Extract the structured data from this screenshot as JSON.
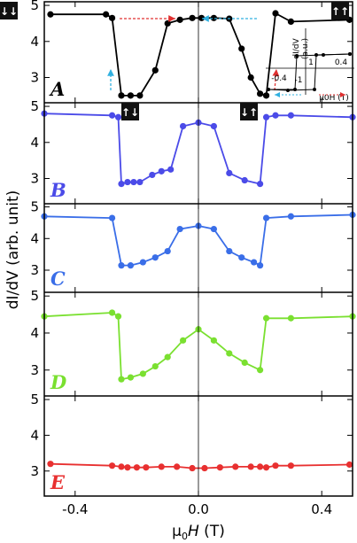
{
  "chart_data": {
    "type": "line",
    "xlabel": "μ0H (T)",
    "ylabel": "dI/dV (arb. unit)",
    "xlim": [
      -0.5,
      0.5
    ],
    "x_ticks": [
      "-0.4",
      "0.0",
      "0.4"
    ],
    "y_ticks": [
      "3",
      "4",
      "5"
    ],
    "ylim": [
      2.3,
      5.1
    ],
    "grid": false,
    "zero_line": true,
    "panels": [
      {
        "label": "A",
        "color": "#000000",
        "letter_color": "#000000",
        "series": [
          {
            "x": [
              -0.48,
              -0.3,
              -0.28,
              -0.25,
              -0.22,
              -0.19,
              -0.14,
              -0.1,
              -0.06,
              -0.02,
              0.01,
              0.05,
              0.1,
              0.14,
              0.17,
              0.2,
              0.22,
              0.25,
              0.3,
              0.49
            ],
            "y": [
              4.75,
              4.75,
              4.65,
              2.5,
              2.5,
              2.5,
              3.2,
              4.5,
              4.6,
              4.65,
              4.65,
              4.65,
              4.63,
              3.8,
              3.0,
              2.55,
              2.5,
              4.78,
              4.55,
              4.6
            ]
          }
        ],
        "arrows": [
          {
            "color": "#e03030",
            "direction": "right"
          },
          {
            "color": "#30b0e0",
            "direction": "left"
          },
          {
            "color": "#30b0e0",
            "direction": "up"
          },
          {
            "color": "#e03030",
            "direction": "up"
          }
        ],
        "magnet_icons": [
          "↓↓",
          "↑↑"
        ]
      },
      {
        "label": "B",
        "color": "#4b4be8",
        "letter_color": "#4b4be8",
        "series": [
          {
            "x": [
              -0.5,
              -0.28,
              -0.26,
              -0.25,
              -0.23,
              -0.21,
              -0.19,
              -0.15,
              -0.12,
              -0.09,
              -0.05,
              0.0,
              0.05,
              0.1,
              0.15,
              0.2,
              0.22,
              0.25,
              0.3,
              0.5
            ],
            "y": [
              4.8,
              4.75,
              4.7,
              2.85,
              2.9,
              2.9,
              2.9,
              3.1,
              3.2,
              3.25,
              4.45,
              4.55,
              4.45,
              3.15,
              2.95,
              2.85,
              4.7,
              4.75,
              4.75,
              4.7
            ]
          }
        ],
        "magnet_icons": [
          "↑↓",
          "↓↑"
        ]
      },
      {
        "label": "C",
        "color": "#3a6ee8",
        "letter_color": "#3a6ee8",
        "series": [
          {
            "x": [
              -0.5,
              -0.28,
              -0.25,
              -0.22,
              -0.18,
              -0.14,
              -0.1,
              -0.06,
              0.0,
              0.05,
              0.1,
              0.14,
              0.18,
              0.2,
              0.22,
              0.3,
              0.5
            ],
            "y": [
              4.7,
              4.65,
              3.15,
              3.15,
              3.25,
              3.4,
              3.6,
              4.3,
              4.4,
              4.3,
              3.6,
              3.4,
              3.25,
              3.15,
              4.65,
              4.7,
              4.75
            ]
          }
        ]
      },
      {
        "label": "D",
        "color": "#7ae030",
        "letter_color": "#7ae030",
        "series": [
          {
            "x": [
              -0.5,
              -0.28,
              -0.26,
              -0.25,
              -0.22,
              -0.18,
              -0.14,
              -0.1,
              -0.05,
              0.0,
              0.05,
              0.1,
              0.15,
              0.2,
              0.22,
              0.3,
              0.5
            ],
            "y": [
              4.45,
              4.55,
              4.45,
              2.75,
              2.8,
              2.9,
              3.1,
              3.35,
              3.8,
              4.1,
              3.8,
              3.45,
              3.2,
              3.0,
              4.4,
              4.4,
              4.45
            ]
          }
        ]
      },
      {
        "label": "E",
        "color": "#e83030",
        "letter_color": "#e83030",
        "series": [
          {
            "x": [
              -0.48,
              -0.28,
              -0.25,
              -0.23,
              -0.2,
              -0.17,
              -0.12,
              -0.07,
              -0.02,
              0.02,
              0.07,
              0.12,
              0.17,
              0.2,
              0.22,
              0.25,
              0.3,
              0.49
            ],
            "y": [
              3.2,
              3.15,
              3.12,
              3.1,
              3.1,
              3.1,
              3.12,
              3.12,
              3.08,
              3.08,
              3.1,
              3.12,
              3.12,
              3.12,
              3.1,
              3.15,
              3.15,
              3.18
            ]
          }
        ]
      }
    ],
    "inset": {
      "ylabel": "dI/dV\n(a.u.)",
      "xlabel": "μ0H (T)",
      "tick_labels": [
        "-0.4",
        "-1",
        "1",
        "0.4"
      ],
      "color": "#000000"
    }
  }
}
